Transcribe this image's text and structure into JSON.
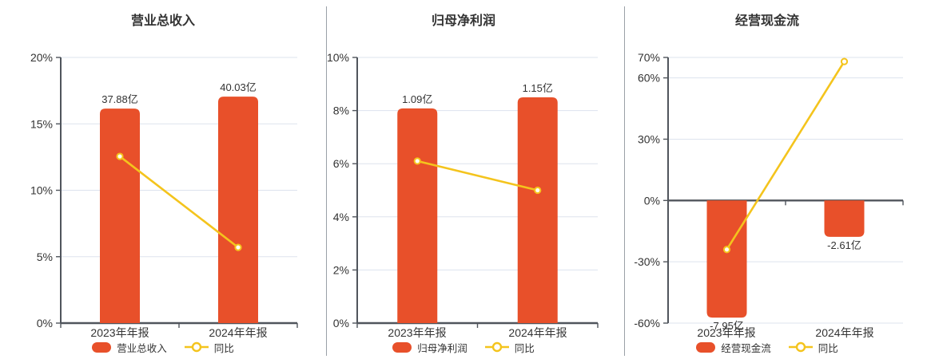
{
  "colors": {
    "bar": "#e8502a",
    "line": "#f4c41d",
    "grid": "#dde3ee",
    "axis": "#50555c",
    "text": "#333333",
    "marker_fill": "#fffef6",
    "background": "#ffffff"
  },
  "chart_data": [
    {
      "type": "bar",
      "title": "营业总收入",
      "categories": [
        "2023年年报",
        "2024年年报"
      ],
      "bar": {
        "name": "营业总收入",
        "unit": "亿",
        "values": [
          37.88,
          40.03
        ],
        "labels": [
          "37.88亿",
          "40.03亿"
        ],
        "color": "#e8502a",
        "drawn_pct": [
          16.15,
          17.05
        ],
        "label_side": "above"
      },
      "line": {
        "name": "同比",
        "unit": "%",
        "values_pct": [
          12.55,
          5.7
        ],
        "color": "#f4c41d"
      },
      "y_axis": {
        "min": 0,
        "max": 20,
        "ticks": [
          0,
          5,
          10,
          15,
          20
        ],
        "format": "percent"
      },
      "grid": true,
      "legend_position": "bottom"
    },
    {
      "type": "bar",
      "title": "归母净利润",
      "categories": [
        "2023年年报",
        "2024年年报"
      ],
      "bar": {
        "name": "归母净利润",
        "unit": "亿",
        "values": [
          1.09,
          1.15
        ],
        "labels": [
          "1.09亿",
          "1.15亿"
        ],
        "color": "#e8502a",
        "drawn_pct": [
          8.08,
          8.5
        ],
        "label_side": "above"
      },
      "line": {
        "name": "同比",
        "unit": "%",
        "values_pct": [
          6.1,
          5.0
        ],
        "color": "#f4c41d"
      },
      "y_axis": {
        "min": 0,
        "max": 10,
        "ticks": [
          0,
          2,
          4,
          6,
          8,
          10
        ],
        "format": "percent"
      },
      "grid": true,
      "legend_position": "bottom"
    },
    {
      "type": "bar",
      "title": "经营现金流",
      "categories": [
        "2023年年报",
        "2024年年报"
      ],
      "bar": {
        "name": "经营现金流",
        "unit": "亿",
        "values": [
          -7.95,
          -2.61
        ],
        "labels": [
          "-7.95亿",
          "-2.61亿"
        ],
        "color": "#e8502a",
        "drawn_pct": [
          -57.3,
          -17.8
        ],
        "label_side": "below"
      },
      "line": {
        "name": "同比",
        "unit": "%",
        "values_pct": [
          -24,
          68
        ],
        "color": "#f4c41d"
      },
      "y_axis": {
        "min": -60,
        "max": 70,
        "ticks": [
          -60,
          -30,
          0,
          30,
          60,
          70
        ],
        "format": "percent"
      },
      "grid": true,
      "legend_position": "bottom"
    }
  ]
}
